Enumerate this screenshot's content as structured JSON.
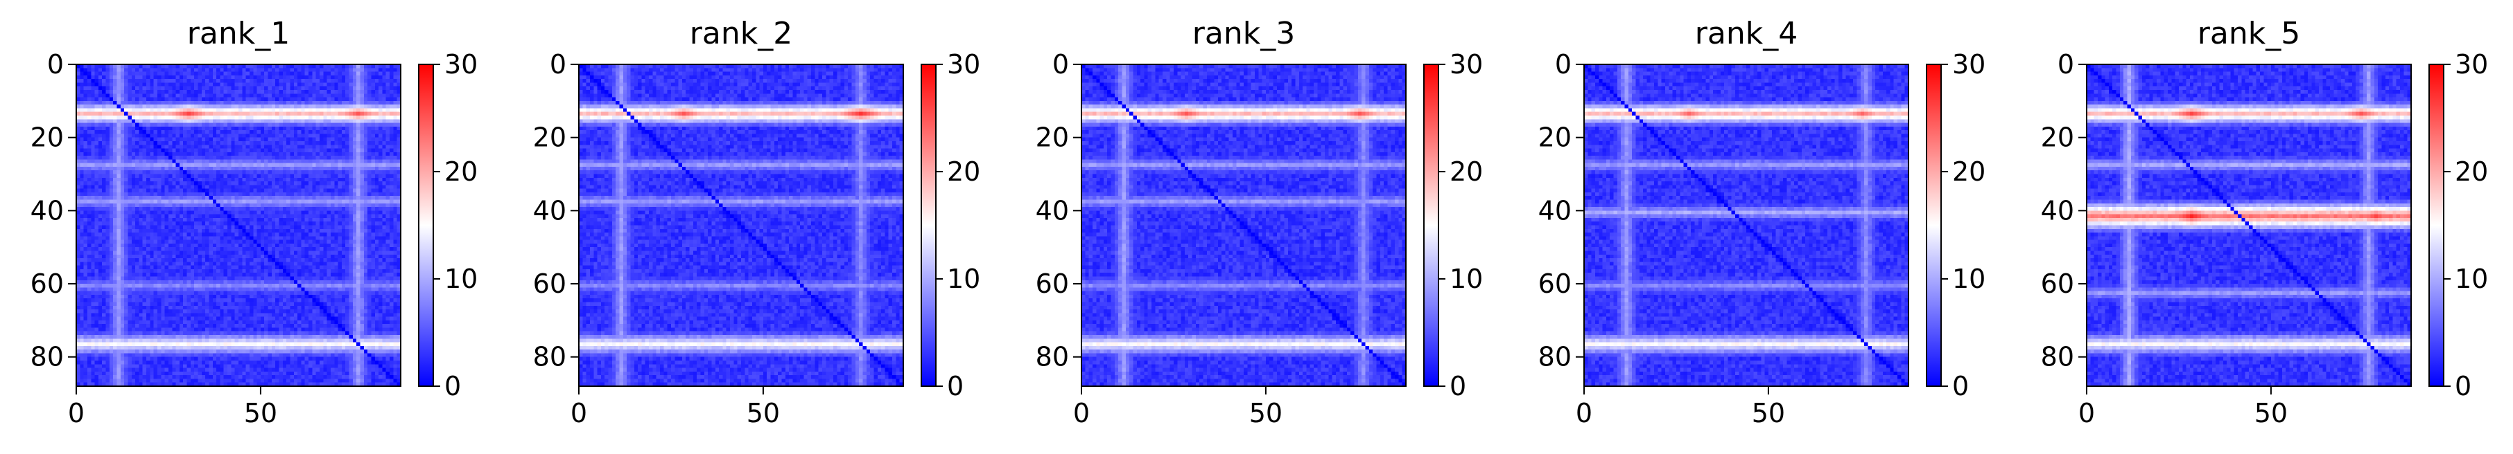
{
  "chart_data": [
    {
      "type": "heatmap",
      "title": "rank_1",
      "x_ticks": [
        0,
        50
      ],
      "y_ticks": [
        0,
        20,
        40,
        60,
        80
      ],
      "colorbar": {
        "ticks": [
          0,
          10,
          20,
          30
        ],
        "range": [
          0,
          30
        ],
        "colormap": "bwr"
      },
      "matrix_size": 88,
      "highlight_bands": [
        {
          "axis": "row",
          "center": 13,
          "width": 3,
          "value": 18,
          "hotspots": [
            {
              "col": 30,
              "value": 26
            },
            {
              "col": 76,
              "value": 25
            }
          ]
        },
        {
          "axis": "row",
          "center": 76,
          "width": 3,
          "value": 14
        },
        {
          "axis": "row",
          "center": 27,
          "width": 2,
          "value": 8
        },
        {
          "axis": "row",
          "center": 37,
          "width": 2,
          "value": 8
        },
        {
          "axis": "row",
          "center": 60,
          "width": 2,
          "value": 7
        },
        {
          "axis": "col",
          "center": 11,
          "width": 3,
          "value": 9
        },
        {
          "axis": "col",
          "center": 76,
          "width": 3,
          "value": 9
        }
      ]
    },
    {
      "type": "heatmap",
      "title": "rank_2",
      "x_ticks": [
        0,
        50
      ],
      "y_ticks": [
        0,
        20,
        40,
        60,
        80
      ],
      "colorbar": {
        "ticks": [
          0,
          10,
          20,
          30
        ],
        "range": [
          0,
          30
        ],
        "colormap": "bwr"
      },
      "matrix_size": 88,
      "highlight_bands": [
        {
          "axis": "row",
          "center": 13,
          "width": 3,
          "value": 18,
          "hotspots": [
            {
              "col": 28,
              "value": 25
            },
            {
              "col": 76,
              "value": 27
            }
          ]
        },
        {
          "axis": "row",
          "center": 76,
          "width": 3,
          "value": 14
        },
        {
          "axis": "row",
          "center": 27,
          "width": 2,
          "value": 8
        },
        {
          "axis": "row",
          "center": 37,
          "width": 2,
          "value": 8
        },
        {
          "axis": "row",
          "center": 60,
          "width": 2,
          "value": 7
        },
        {
          "axis": "col",
          "center": 11,
          "width": 3,
          "value": 9
        },
        {
          "axis": "col",
          "center": 76,
          "width": 3,
          "value": 8
        }
      ]
    },
    {
      "type": "heatmap",
      "title": "rank_3",
      "x_ticks": [
        0,
        50
      ],
      "y_ticks": [
        0,
        20,
        40,
        60,
        80
      ],
      "colorbar": {
        "ticks": [
          0,
          10,
          20,
          30
        ],
        "range": [
          0,
          30
        ],
        "colormap": "bwr"
      },
      "matrix_size": 88,
      "highlight_bands": [
        {
          "axis": "row",
          "center": 13,
          "width": 3,
          "value": 18,
          "hotspots": [
            {
              "col": 28,
              "value": 25
            },
            {
              "col": 75,
              "value": 25
            }
          ]
        },
        {
          "axis": "row",
          "center": 76,
          "width": 3,
          "value": 14
        },
        {
          "axis": "row",
          "center": 27,
          "width": 2,
          "value": 8
        },
        {
          "axis": "row",
          "center": 37,
          "width": 2,
          "value": 8
        },
        {
          "axis": "row",
          "center": 60,
          "width": 2,
          "value": 7
        },
        {
          "axis": "col",
          "center": 11,
          "width": 3,
          "value": 9
        },
        {
          "axis": "col",
          "center": 76,
          "width": 3,
          "value": 8
        }
      ]
    },
    {
      "type": "heatmap",
      "title": "rank_4",
      "x_ticks": [
        0,
        50
      ],
      "y_ticks": [
        0,
        20,
        40,
        60,
        80
      ],
      "colorbar": {
        "ticks": [
          0,
          10,
          20,
          30
        ],
        "range": [
          0,
          30
        ],
        "colormap": "bwr"
      },
      "matrix_size": 88,
      "highlight_bands": [
        {
          "axis": "row",
          "center": 13,
          "width": 3,
          "value": 18,
          "hotspots": [
            {
              "col": 28,
              "value": 24
            },
            {
              "col": 75,
              "value": 24
            }
          ]
        },
        {
          "axis": "row",
          "center": 76,
          "width": 3,
          "value": 14
        },
        {
          "axis": "row",
          "center": 27,
          "width": 2,
          "value": 8
        },
        {
          "axis": "row",
          "center": 40,
          "width": 2,
          "value": 9
        },
        {
          "axis": "row",
          "center": 60,
          "width": 2,
          "value": 7
        },
        {
          "axis": "col",
          "center": 11,
          "width": 3,
          "value": 9
        },
        {
          "axis": "col",
          "center": 76,
          "width": 3,
          "value": 8
        }
      ]
    },
    {
      "type": "heatmap",
      "title": "rank_5",
      "x_ticks": [
        0,
        50
      ],
      "y_ticks": [
        0,
        20,
        40,
        60,
        80
      ],
      "colorbar": {
        "ticks": [
          0,
          10,
          20,
          30
        ],
        "range": [
          0,
          30
        ],
        "colormap": "bwr"
      },
      "matrix_size": 88,
      "highlight_bands": [
        {
          "axis": "row",
          "center": 13,
          "width": 3,
          "value": 18,
          "hotspots": [
            {
              "col": 28,
              "value": 26
            },
            {
              "col": 74,
              "value": 25
            }
          ]
        },
        {
          "axis": "row",
          "center": 41,
          "width": 4,
          "value": 22,
          "hotspots": [
            {
              "col": 28,
              "value": 28
            },
            {
              "col": 78,
              "value": 26
            }
          ]
        },
        {
          "axis": "row",
          "center": 76,
          "width": 3,
          "value": 14
        },
        {
          "axis": "row",
          "center": 27,
          "width": 2,
          "value": 9
        },
        {
          "axis": "row",
          "center": 62,
          "width": 2,
          "value": 8
        },
        {
          "axis": "col",
          "center": 11,
          "width": 3,
          "value": 10
        },
        {
          "axis": "col",
          "center": 76,
          "width": 3,
          "value": 9
        }
      ]
    }
  ]
}
